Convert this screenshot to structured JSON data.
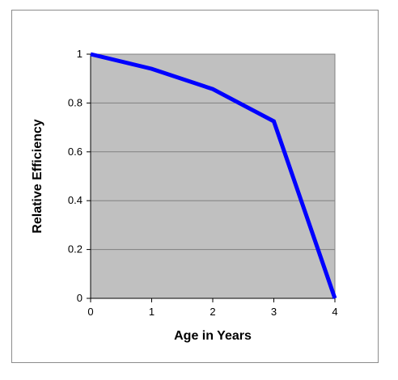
{
  "chart_data": {
    "type": "line",
    "title": "",
    "xlabel": "Age in Years",
    "ylabel": "Relative Efficiency",
    "x": [
      0,
      1,
      2,
      3,
      4
    ],
    "series": [
      {
        "values": [
          1.0,
          0.94,
          0.857,
          0.725,
          0.0
        ]
      }
    ],
    "xlim": [
      0,
      4
    ],
    "ylim": [
      0,
      1
    ],
    "x_ticks": [
      "0",
      "1",
      "2",
      "3",
      "4"
    ],
    "y_ticks": [
      "0",
      "0.2",
      "0.4",
      "0.6",
      "0.8",
      "1"
    ],
    "grid": "horizontal",
    "legend": "none",
    "colors": {
      "line": "#0000ff",
      "plot_background": "#c0c0c0",
      "grid": "#808080",
      "axis": "#000000"
    }
  }
}
